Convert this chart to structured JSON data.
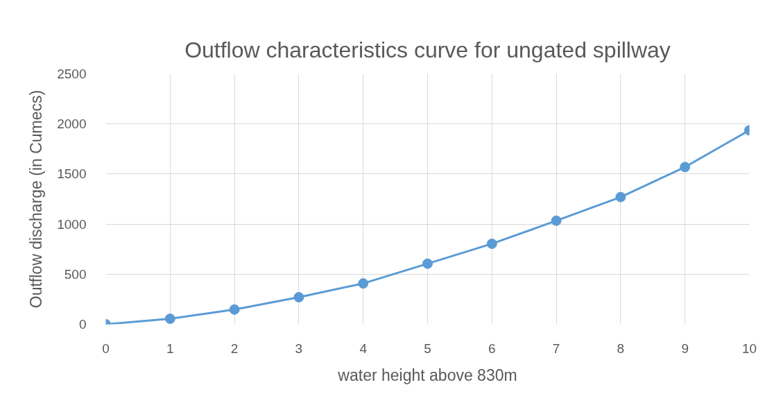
{
  "chart_data": {
    "type": "line",
    "title": "Outflow characteristics curve for ungated spillway",
    "xlabel": "water height above 830m",
    "ylabel": "Outflow discharge (in Cumecs)",
    "x": [
      0,
      1,
      2,
      3,
      4,
      5,
      6,
      7,
      8,
      9,
      10
    ],
    "series": [
      {
        "color": "#5b9bd5",
        "values": [
          0,
          55,
          147,
          270,
          408,
          605,
          804,
          1034,
          1270,
          1570,
          1937
        ]
      }
    ],
    "xlim": [
      0,
      10
    ],
    "xticks": [
      0,
      1,
      2,
      3,
      4,
      5,
      6,
      7,
      8,
      9,
      10
    ],
    "ylim": [
      0,
      2500
    ],
    "yticks": [
      0,
      500,
      1000,
      1500,
      2000,
      2500
    ],
    "grid": true,
    "marker": "circle",
    "line_style": "solid"
  }
}
